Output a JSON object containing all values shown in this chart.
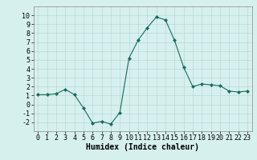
{
  "x": [
    0,
    1,
    2,
    3,
    4,
    5,
    6,
    7,
    8,
    9,
    10,
    11,
    12,
    13,
    14,
    15,
    16,
    17,
    18,
    19,
    20,
    21,
    22,
    23
  ],
  "y": [
    1.1,
    1.1,
    1.2,
    1.7,
    1.1,
    -0.4,
    -2.1,
    -1.9,
    -2.2,
    -0.9,
    5.2,
    7.2,
    8.6,
    9.8,
    9.5,
    7.2,
    4.2,
    2.0,
    2.3,
    2.2,
    2.1,
    1.5,
    1.4,
    1.5
  ],
  "xlabel": "Humidex (Indice chaleur)",
  "ylim": [
    -3,
    11
  ],
  "xlim": [
    -0.5,
    23.5
  ],
  "line_color": "#1a6b5a",
  "marker": "D",
  "marker_size": 2.0,
  "bg_color": "#d6f0ee",
  "grid_color": "#b8d8d8",
  "tick_fontsize": 6,
  "xlabel_fontsize": 7,
  "yticks": [
    -2,
    -1,
    0,
    1,
    2,
    3,
    4,
    5,
    6,
    7,
    8,
    9,
    10
  ],
  "xticks": [
    0,
    1,
    2,
    3,
    4,
    5,
    6,
    7,
    8,
    9,
    10,
    11,
    12,
    13,
    14,
    15,
    16,
    17,
    18,
    19,
    20,
    21,
    22,
    23
  ]
}
